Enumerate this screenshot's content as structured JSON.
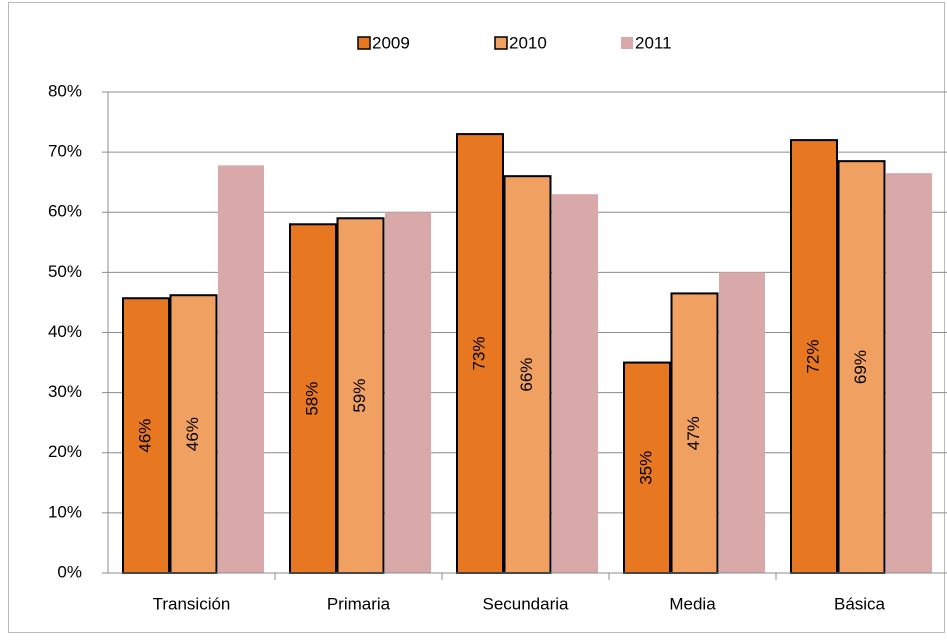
{
  "chart_data": {
    "type": "bar",
    "categories": [
      "Transición",
      "Primaria",
      "Secundaria",
      "Media",
      "Básica"
    ],
    "series": [
      {
        "name": "2009",
        "color": "#e87722",
        "border": "#000000",
        "values": [
          45.7,
          58,
          73,
          35,
          72
        ],
        "value_labels": [
          "46%",
          "58%",
          "73%",
          "35%",
          "72%"
        ]
      },
      {
        "name": "2010",
        "color": "#f0a060",
        "border": "#000000",
        "values": [
          46.2,
          59,
          66,
          46.5,
          68.5
        ],
        "value_labels": [
          "46%",
          "59%",
          "66%",
          "47%",
          "69%"
        ]
      },
      {
        "name": "2011",
        "color": "#d9a8a8",
        "values": [
          67.8,
          60,
          63,
          50,
          66.5
        ]
      }
    ],
    "ylim": [
      0,
      80
    ],
    "yticks": [
      {
        "value": 0,
        "label": "0%"
      },
      {
        "value": 10,
        "label": "10%"
      },
      {
        "value": 20,
        "label": "20%"
      },
      {
        "value": 30,
        "label": "30%"
      },
      {
        "value": 40,
        "label": "40%"
      },
      {
        "value": 50,
        "label": "50%"
      },
      {
        "value": 60,
        "label": "60%"
      },
      {
        "value": 70,
        "label": "70%"
      },
      {
        "value": 80,
        "label": "80%"
      }
    ],
    "grid": true,
    "legend": "top"
  }
}
